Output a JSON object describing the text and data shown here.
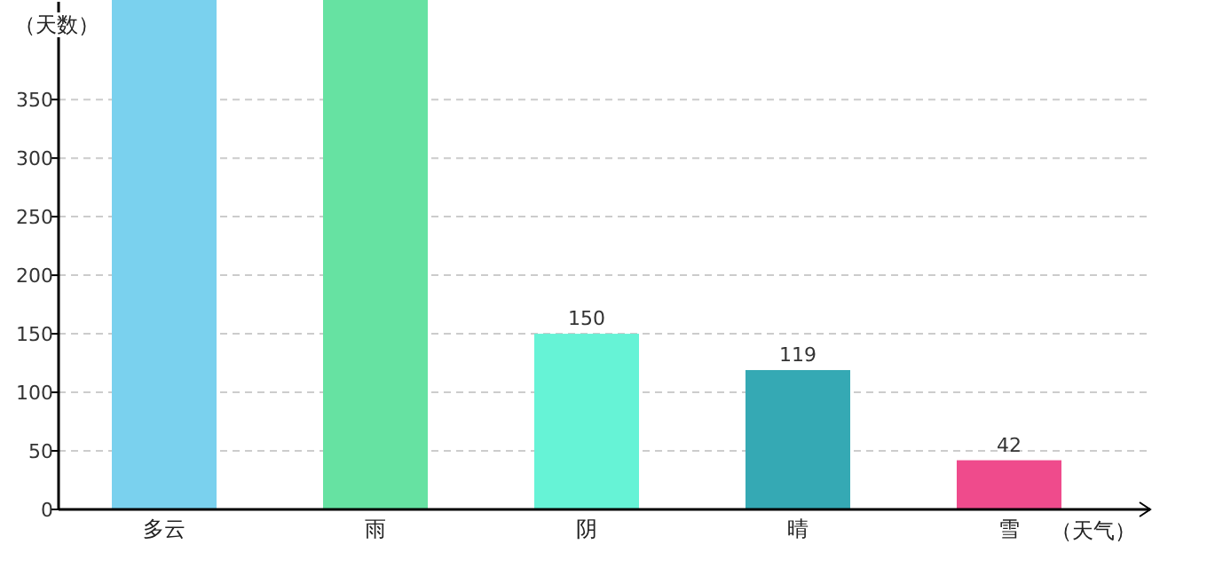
{
  "chart_data": {
    "type": "bar",
    "xlabel": "（天气）",
    "ylabel": "（天数）",
    "categories": [
      "多云",
      "雨",
      "阴",
      "晴",
      "雪"
    ],
    "values": [
      435,
      435,
      150,
      119,
      42
    ],
    "colors": [
      "#7ad1ee",
      "#66e2a2",
      "#66f3d6",
      "#35a9b4",
      "#ef4b8c"
    ],
    "value_labels": [
      null,
      null,
      "150",
      "119",
      "42"
    ],
    "ylim": [
      0,
      435
    ],
    "yticks": [
      0,
      50,
      100,
      150,
      200,
      250,
      300,
      350
    ],
    "grid": "y"
  }
}
